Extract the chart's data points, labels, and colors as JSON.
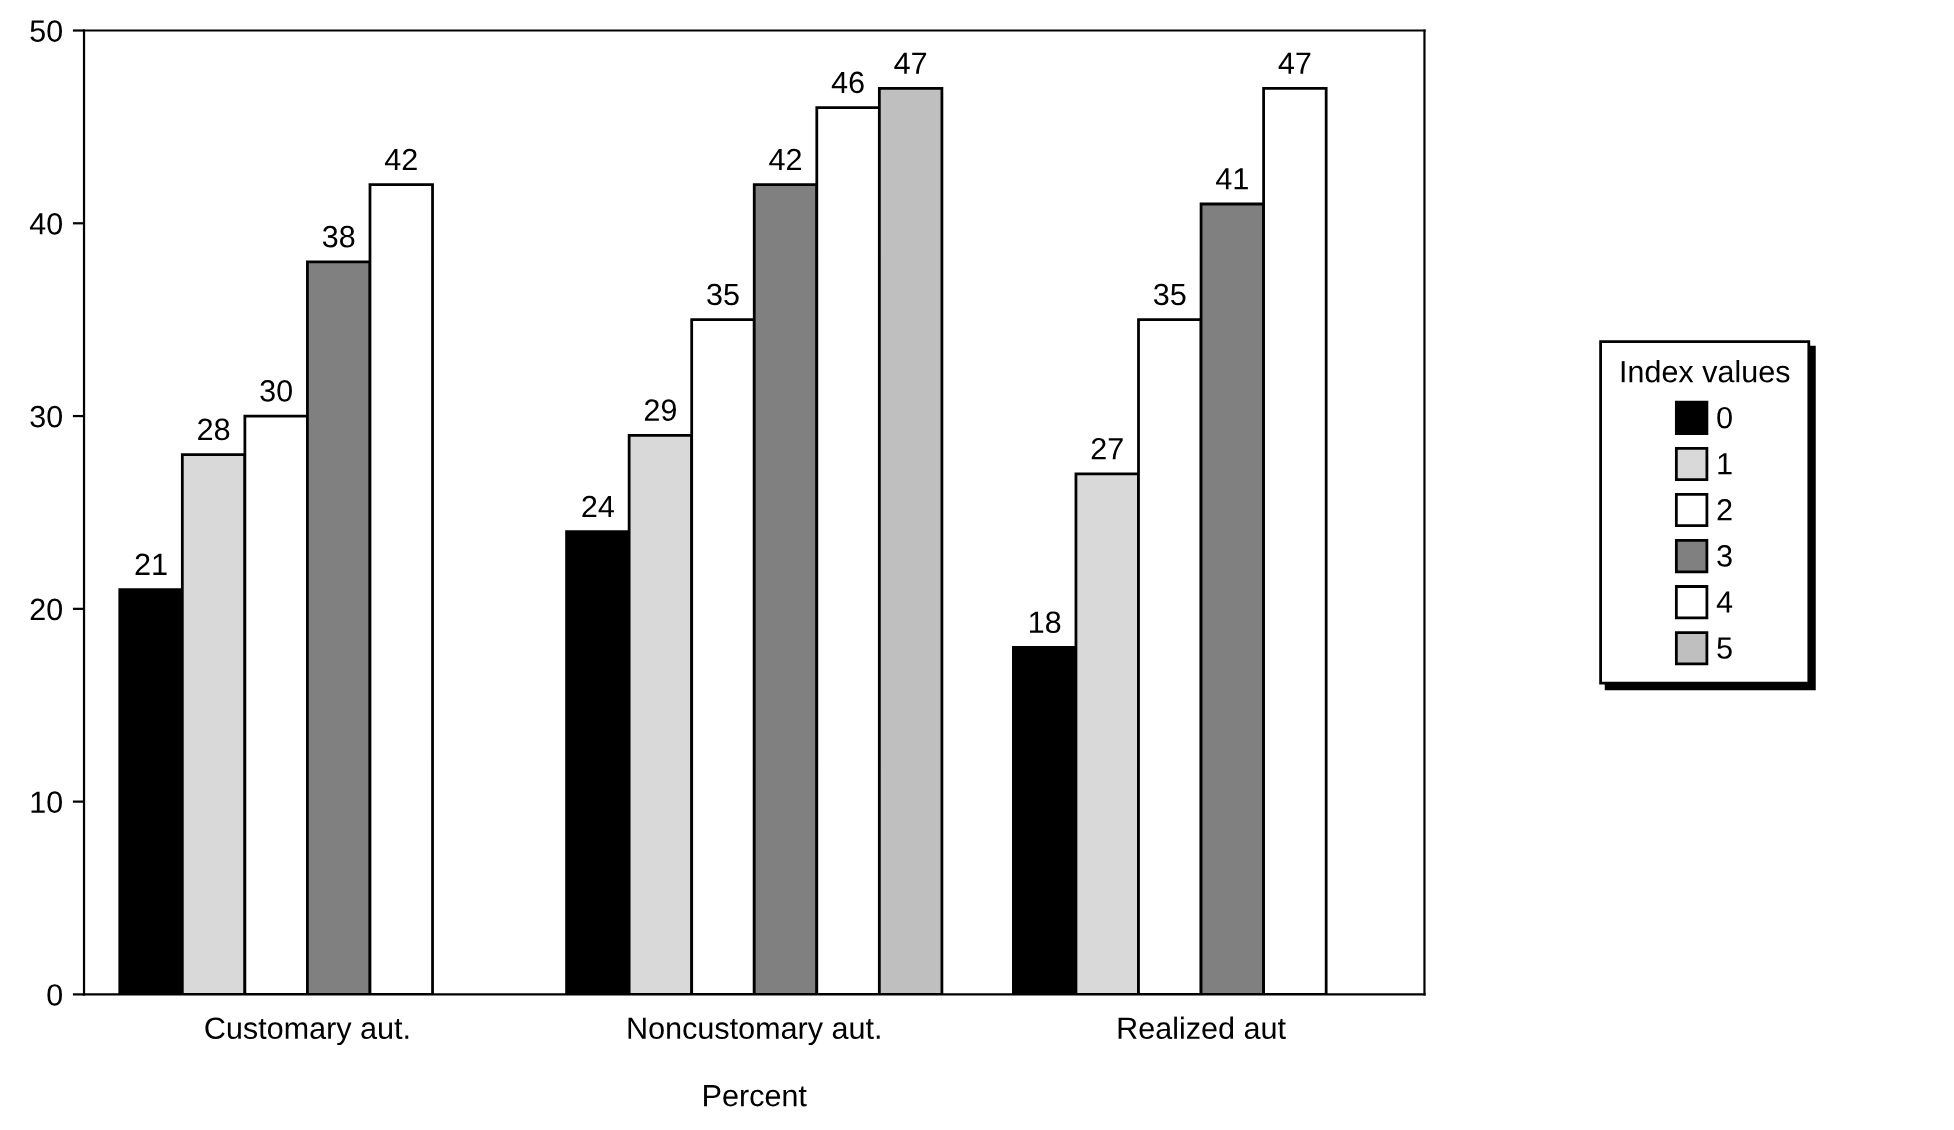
{
  "chart_data": {
    "type": "bar",
    "xlabel": "Percent",
    "legend_title": "Index values",
    "categories": [
      "Customary aut.",
      "Noncustomary aut.",
      "Realized aut"
    ],
    "series": [
      {
        "name": "0",
        "color": "#000000",
        "values": [
          21,
          24,
          18
        ]
      },
      {
        "name": "1",
        "color": "#d9d9d9",
        "values": [
          28,
          29,
          27
        ]
      },
      {
        "name": "2",
        "color": "#ffffff",
        "values": [
          30,
          35,
          35
        ]
      },
      {
        "name": "3",
        "color": "#808080",
        "values": [
          38,
          42,
          41
        ]
      },
      {
        "name": "4",
        "color": "#ffffff",
        "values": [
          42,
          46,
          47
        ]
      },
      {
        "name": "5",
        "color": "#bfbfbf",
        "values": [
          null,
          47,
          null
        ]
      }
    ],
    "ylim": [
      0,
      50
    ],
    "yticks": [
      0,
      10,
      20,
      30,
      40,
      50
    ],
    "grid": false,
    "legend": "right",
    "data_labels": true
  }
}
